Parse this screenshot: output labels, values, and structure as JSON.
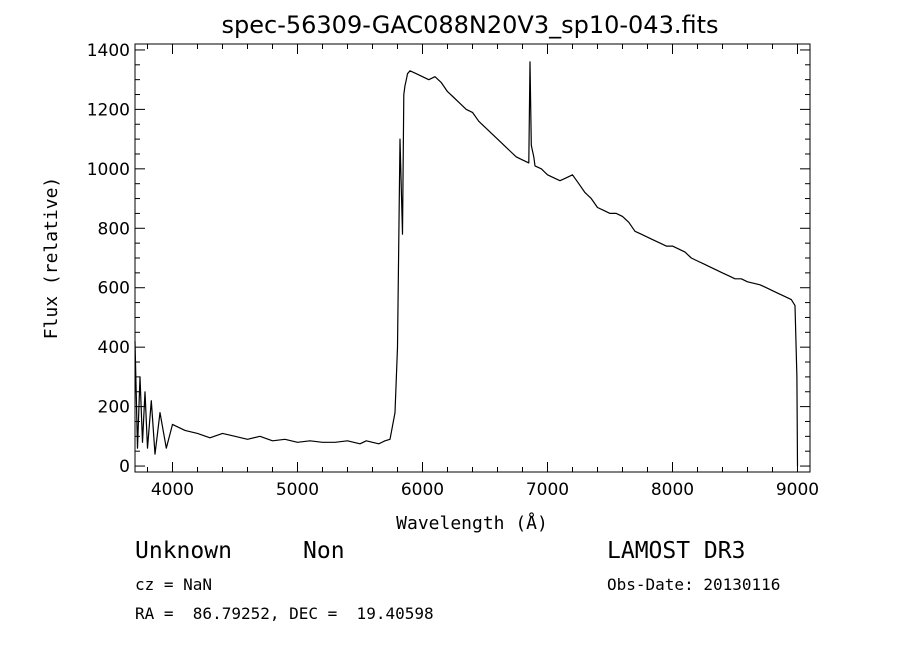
{
  "header": {
    "title": "spec-56309-GAC088N20V3_sp10-043.fits"
  },
  "info": {
    "class": "Unknown",
    "subclass": "Non",
    "cz": "cz = NaN",
    "radec": "RA =  86.79252, DEC =  19.40598",
    "survey": "LAMOST DR3",
    "obsdate": "Obs-Date: 20130116"
  },
  "chart_data": {
    "type": "line",
    "title": "spec-56309-GAC088N20V3_sp10-043.fits",
    "xlabel": "Wavelength (Å)",
    "ylabel": "Flux (relative)",
    "xlim": [
      3700,
      9100
    ],
    "ylim": [
      -20,
      1420
    ],
    "xticks": [
      4000,
      5000,
      6000,
      7000,
      8000,
      9000
    ],
    "yticks": [
      0,
      200,
      400,
      600,
      800,
      1000,
      1200,
      1400
    ],
    "grid": false,
    "series": [
      {
        "x": [
          3700,
          3720,
          3740,
          3760,
          3780,
          3800,
          3830,
          3860,
          3900,
          3950,
          4000,
          4100,
          4200,
          4300,
          4400,
          4500,
          4600,
          4700,
          4800,
          4900,
          5000,
          5100,
          5200,
          5300,
          5400,
          5500,
          5550,
          5600,
          5650,
          5700,
          5740,
          5780,
          5800,
          5820,
          5840,
          5850,
          5860,
          5870,
          5880,
          5900,
          5950,
          6000,
          6050,
          6100,
          6150,
          6200,
          6250,
          6300,
          6350,
          6400,
          6450,
          6500,
          6550,
          6600,
          6650,
          6700,
          6750,
          6800,
          6850,
          6860,
          6870,
          6880,
          6890,
          6900,
          6950,
          7000,
          7050,
          7100,
          7150,
          7200,
          7250,
          7300,
          7350,
          7400,
          7450,
          7500,
          7550,
          7600,
          7650,
          7700,
          7750,
          7800,
          7850,
          7900,
          7950,
          8000,
          8050,
          8100,
          8150,
          8200,
          8250,
          8300,
          8350,
          8400,
          8450,
          8500,
          8550,
          8600,
          8650,
          8700,
          8750,
          8800,
          8850,
          8900,
          8950,
          8980,
          8995,
          9000
        ],
        "y": [
          420,
          60,
          300,
          80,
          250,
          60,
          220,
          40,
          180,
          60,
          140,
          120,
          110,
          95,
          110,
          100,
          90,
          100,
          85,
          90,
          80,
          85,
          80,
          80,
          85,
          75,
          85,
          80,
          75,
          85,
          90,
          180,
          400,
          1100,
          780,
          1250,
          1280,
          1300,
          1320,
          1330,
          1320,
          1310,
          1300,
          1310,
          1290,
          1260,
          1240,
          1220,
          1200,
          1190,
          1160,
          1140,
          1120,
          1100,
          1080,
          1060,
          1040,
          1030,
          1020,
          1360,
          1080,
          1060,
          1040,
          1010,
          1000,
          980,
          970,
          960,
          970,
          980,
          950,
          920,
          900,
          870,
          860,
          850,
          850,
          840,
          820,
          790,
          780,
          770,
          760,
          750,
          740,
          740,
          730,
          720,
          700,
          690,
          680,
          670,
          660,
          650,
          640,
          630,
          630,
          620,
          615,
          610,
          600,
          590,
          580,
          570,
          560,
          540,
          300,
          0
        ]
      }
    ]
  }
}
